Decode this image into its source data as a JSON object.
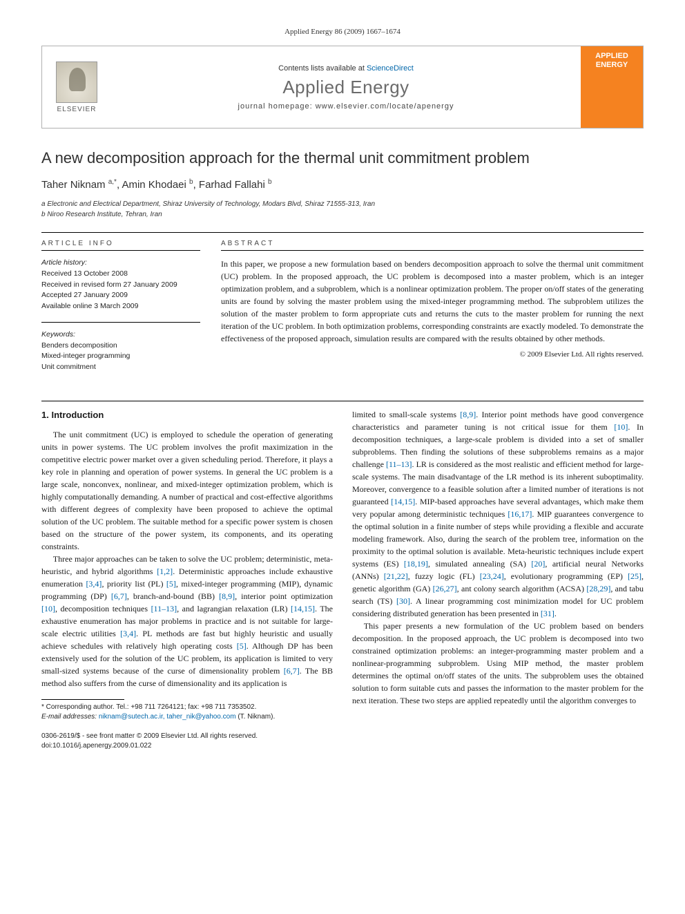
{
  "meta": {
    "running_head": "Applied Energy 86 (2009) 1667–1674",
    "contents_text": "Contents lists available at ",
    "contents_link": "ScienceDirect",
    "journal_name": "Applied Energy",
    "homepage_text": "journal homepage: www.elsevier.com/locate/apenergy",
    "publisher_label": "ELSEVIER",
    "cover_word1": "APPLIED",
    "cover_word2": "ENERGY"
  },
  "article": {
    "title": "A new decomposition approach for the thermal unit commitment problem",
    "authors_html": "Taher Niknam <sup>a,*</sup>, Amin Khodaei <sup>b</sup>, Farhad Fallahi <sup>b</sup>",
    "affiliations": [
      "a Electronic and Electrical Department, Shiraz University of Technology, Modars Blvd, Shiraz 71555-313, Iran",
      "b Niroo Research Institute, Tehran, Iran"
    ]
  },
  "info": {
    "heading": "ARTICLE INFO",
    "history_label": "Article history:",
    "history": [
      "Received 13 October 2008",
      "Received in revised form 27 January 2009",
      "Accepted 27 January 2009",
      "Available online 3 March 2009"
    ],
    "keywords_label": "Keywords:",
    "keywords": [
      "Benders decomposition",
      "Mixed-integer programming",
      "Unit commitment"
    ]
  },
  "abstract": {
    "heading": "ABSTRACT",
    "text": "In this paper, we propose a new formulation based on benders decomposition approach to solve the thermal unit commitment (UC) problem. In the proposed approach, the UC problem is decomposed into a master problem, which is an integer optimization problem, and a subproblem, which is a nonlinear optimization problem. The proper on/off states of the generating units are found by solving the master problem using the mixed-integer programming method. The subproblem utilizes the solution of the master problem to form appropriate cuts and returns the cuts to the master problem for running the next iteration of the UC problem. In both optimization problems, corresponding constraints are exactly modeled. To demonstrate the effectiveness of the proposed approach, simulation results are compared with the results obtained by other methods.",
    "copyright": "© 2009 Elsevier Ltd. All rights reserved."
  },
  "body": {
    "section_number": "1.",
    "section_title": "Introduction",
    "para1": "The unit commitment (UC) is employed to schedule the operation of generating units in power systems. The UC problem involves the profit maximization in the competitive electric power market over a given scheduling period. Therefore, it plays a key role in planning and operation of power systems. In general the UC problem is a large scale, nonconvex, nonlinear, and mixed-integer optimization problem, which is highly computationally demanding. A number of practical and cost-effective algorithms with different degrees of complexity have been proposed to achieve the optimal solution of the UC problem. The suitable method for a specific power system is chosen based on the structure of the power system, its components, and its operating constraints.",
    "para2_a": "Three major approaches can be taken to solve the UC problem; deterministic, meta-heuristic, and hybrid algorithms ",
    "para2_refs": "[1,2]",
    "para2_b": ". Deterministic approaches include exhaustive enumeration ",
    "para2_refs2": "[3,4]",
    "para2_c": ", priority list (PL) ",
    "para2_refs3": "[5]",
    "para2_d": ", mixed-integer programming (MIP), dynamic programming (DP) ",
    "para2_refs4": "[6,7]",
    "para2_e": ", branch-and-bound (BB) ",
    "para2_refs5": "[8,9]",
    "para2_f": ", interior point optimization ",
    "para2_refs6": "[10]",
    "para2_g": ", decomposition techniques ",
    "para2_refs7": "[11–13]",
    "para2_h": ", and lagrangian relaxation (LR) ",
    "para2_refs8": "[14,15]",
    "para2_i": ". The exhaustive enumeration has major problems in practice and is not suitable for large-scale electric utilities ",
    "para2_refs9": "[3,4]",
    "para2_j": ". PL methods are fast but highly heuristic and usually achieve schedules with relatively high operating costs ",
    "para2_refs10": "[5]",
    "para2_k": ". Although DP has been extensively used for the solution of the UC problem, its application is limited to very small-sized systems because of the curse of dimensionality problem ",
    "para2_refs11": "[6,7]",
    "para2_l": ". The BB method also suffers from the curse of dimensionality and its application is",
    "para3_a": "limited to small-scale systems ",
    "para3_refs1": "[8,9]",
    "para3_b": ". Interior point methods have good convergence characteristics and parameter tuning is not critical issue for them ",
    "para3_refs2": "[10]",
    "para3_c": ". In decomposition techniques, a large-scale problem is divided into a set of smaller subproblems. Then finding the solutions of these subproblems remains as a major challenge ",
    "para3_refs3": "[11–13]",
    "para3_d": ". LR is considered as the most realistic and efficient method for large-scale systems. The main disadvantage of the LR method is its inherent suboptimality. Moreover, convergence to a feasible solution after a limited number of iterations is not guaranteed ",
    "para3_refs4": "[14,15]",
    "para3_e": ". MIP-based approaches have several advantages, which make them very popular among deterministic techniques ",
    "para3_refs5": "[16,17]",
    "para3_f": ". MIP guarantees convergence to the optimal solution in a finite number of steps while providing a flexible and accurate modeling framework. Also, during the search of the problem tree, information on the proximity to the optimal solution is available. Meta-heuristic techniques include expert systems (ES) ",
    "para3_refs6": "[18,19]",
    "para3_g": ", simulated annealing (SA) ",
    "para3_refs7": "[20]",
    "para3_h": ", artificial neural Networks (ANNs) ",
    "para3_refs8": "[21,22]",
    "para3_i": ", fuzzy logic (FL) ",
    "para3_refs9": "[23,24]",
    "para3_j": ", evolutionary programming (EP) ",
    "para3_refs10": "[25]",
    "para3_k": ", genetic algorithm (GA) ",
    "para3_refs11": "[26,27]",
    "para3_l": ", ant colony search algorithm (ACSA) ",
    "para3_refs12": "[28,29]",
    "para3_m": ", and tabu search (TS) ",
    "para3_refs13": "[30]",
    "para3_n": ". A linear programming cost minimization model for UC problem considering distributed generation has been presented in ",
    "para3_refs14": "[31]",
    "para3_o": ".",
    "para4": "This paper presents a new formulation of the UC problem based on benders decomposition. In the proposed approach, the UC problem is decomposed into two constrained optimization problems: an integer-programming master problem and a nonlinear-programming subproblem. Using MIP method, the master problem determines the optimal on/off states of the units. The subproblem uses the obtained solution to form suitable cuts and passes the information to the master problem for the next iteration. These two steps are applied repeatedly until the algorithm converges to"
  },
  "footnotes": {
    "corr": "* Corresponding author. Tel.: +98 711 7264121; fax: +98 711 7353502.",
    "email_label": "E-mail addresses:",
    "emails": "niknam@sutech.ac.ir, taher_nik@yahoo.com",
    "email_who": " (T. Niknam)."
  },
  "footer": {
    "front_matter": "0306-2619/$ - see front matter © 2009 Elsevier Ltd. All rights reserved.",
    "doi": "doi:10.1016/j.apenergy.2009.01.022"
  },
  "colors": {
    "link": "#0066aa",
    "elsevier_orange": "#f58220",
    "text": "#1a1a1a",
    "rule": "#000000"
  }
}
